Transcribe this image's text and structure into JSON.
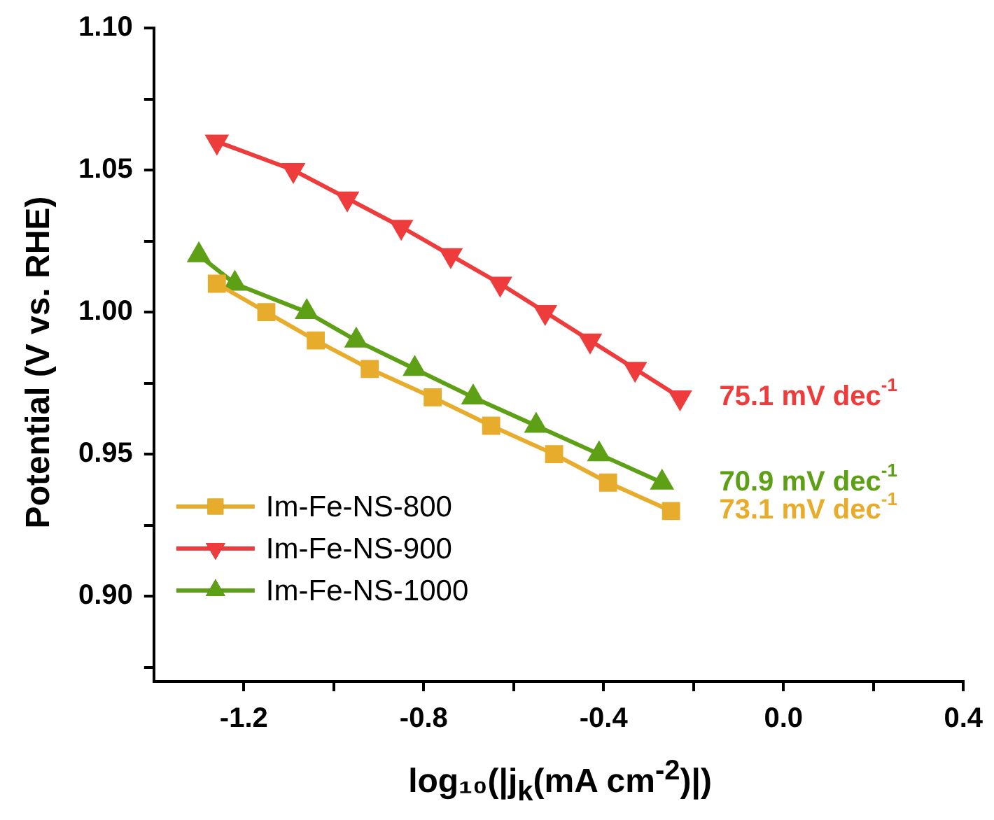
{
  "chart_data": {
    "type": "line",
    "xlabel": "log₁₀(|j$_{k}$(mA cm$^{-2}$)|)",
    "ylabel": "Potential (V vs. RHE)",
    "xlim": [
      -1.4,
      0.4
    ],
    "ylim": [
      0.87,
      1.1
    ],
    "xticks": [
      {
        "value": -1.2,
        "label": "-1.2"
      },
      {
        "value": -1.0,
        "label": null
      },
      {
        "value": -0.8,
        "label": "-0.8"
      },
      {
        "value": -0.6,
        "label": null
      },
      {
        "value": -0.4,
        "label": "-0.4"
      },
      {
        "value": -0.2,
        "label": null
      },
      {
        "value": 0,
        "label": "0.0"
      },
      {
        "value": 0.2,
        "label": null
      },
      {
        "value": 0.4,
        "label": "0.4"
      }
    ],
    "yticks": [
      {
        "value": 0.875,
        "label": null
      },
      {
        "value": 0.9,
        "label": "0.90"
      },
      {
        "value": 0.925,
        "label": null
      },
      {
        "value": 0.95,
        "label": "0.95"
      },
      {
        "value": 0.975,
        "label": null
      },
      {
        "value": 1.0,
        "label": "1.00"
      },
      {
        "value": 1.025,
        "label": null
      },
      {
        "value": 1.05,
        "label": "1.05"
      },
      {
        "value": 1.075,
        "label": null
      },
      {
        "value": 1.1,
        "label": "1.10"
      }
    ],
    "grid": false,
    "legend": "bottom left",
    "series": [
      {
        "name": "Im-Fe-NS-800",
        "color": "#e8ac2c",
        "marker": "square",
        "x": [
          -1.26,
          -1.15,
          -1.04,
          -0.92,
          -0.78,
          -0.65,
          -0.51,
          -0.39,
          -0.25
        ],
        "values": [
          1.01,
          1.0,
          0.99,
          0.98,
          0.97,
          0.96,
          0.95,
          0.94,
          0.93
        ]
      },
      {
        "name": "Im-Fe-NS-900",
        "color": "#ee3c3c",
        "marker": "triangle_down",
        "x": [
          -1.26,
          -1.09,
          -0.97,
          -0.85,
          -0.74,
          -0.63,
          -0.53,
          -0.43,
          -0.33,
          -0.23
        ],
        "values": [
          1.06,
          1.05,
          1.04,
          1.03,
          1.02,
          1.01,
          1.0,
          0.99,
          0.98,
          0.97
        ]
      },
      {
        "name": "Im-Fe-NS-1000",
        "color": "#5da016",
        "marker": "triangle",
        "x": [
          -1.3,
          -1.22,
          -1.06,
          -0.95,
          -0.82,
          -0.69,
          -0.55,
          -0.41,
          -0.27
        ],
        "values": [
          1.02,
          1.01,
          1.0,
          0.99,
          0.98,
          0.97,
          0.96,
          0.95,
          0.94
        ]
      }
    ],
    "annotations": [
      "73.1 mV dec$^{-1}$",
      "75.1 mV dec$^{-1}$",
      "70.9 mV dec$^{-1}$"
    ]
  }
}
